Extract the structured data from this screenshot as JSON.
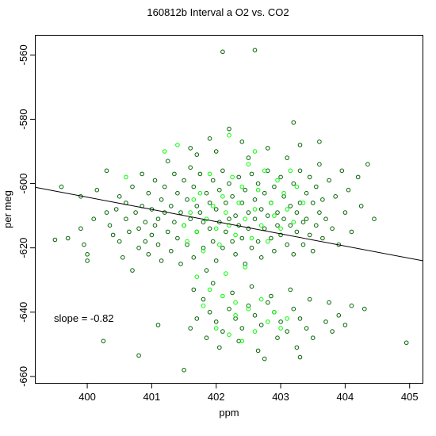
{
  "chart_data": {
    "type": "scatter",
    "title": "160812b   Interval a O2 vs. CO2",
    "xlabel": "ppm",
    "ylabel": "per meg",
    "xlim": [
      399.2,
      405.2
    ],
    "ylim": [
      -662,
      -554
    ],
    "xticks": [
      400,
      401,
      402,
      403,
      404,
      405
    ],
    "yticks": [
      -560,
      -580,
      -600,
      -620,
      -640,
      -660
    ],
    "grid": false,
    "legend": "none",
    "annotation": "slope =  -0.82",
    "regression": {
      "slope": -0.82,
      "x": [
        399.2,
        405.2
      ],
      "y": [
        -601.2,
        -624.0
      ]
    },
    "colors": {
      "series_a": "#006400",
      "series_b": "#00ff00",
      "line": "#000000"
    },
    "series": [
      {
        "color": "#006400",
        "points": [
          [
            399.5,
            -617.5
          ],
          [
            399.6,
            -601
          ],
          [
            399.7,
            -617
          ],
          [
            399.9,
            -604
          ],
          [
            399.9,
            -614
          ],
          [
            399.95,
            -619
          ],
          [
            400.0,
            -622
          ],
          [
            400.0,
            -624
          ],
          [
            400.1,
            -611
          ],
          [
            400.15,
            -602
          ],
          [
            400.25,
            -649
          ],
          [
            400.3,
            -596
          ],
          [
            400.3,
            -609
          ],
          [
            400.35,
            -613
          ],
          [
            400.4,
            -616
          ],
          [
            400.45,
            -608
          ],
          [
            400.5,
            -604
          ],
          [
            400.5,
            -618
          ],
          [
            400.55,
            -623
          ],
          [
            400.6,
            -611
          ],
          [
            400.6,
            -606
          ],
          [
            400.65,
            -615
          ],
          [
            400.7,
            -601
          ],
          [
            400.7,
            -627
          ],
          [
            400.75,
            -609
          ],
          [
            400.8,
            -620
          ],
          [
            400.8,
            -614
          ],
          [
            400.85,
            -597
          ],
          [
            400.85,
            -607
          ],
          [
            400.9,
            -612
          ],
          [
            400.9,
            -618
          ],
          [
            400.95,
            -622
          ],
          [
            400.95,
            -603
          ],
          [
            401.0,
            -608
          ],
          [
            401.0,
            -616
          ],
          [
            401.05,
            -599
          ],
          [
            401.05,
            -613
          ],
          [
            401.1,
            -611
          ],
          [
            401.1,
            -619
          ],
          [
            401.15,
            -605
          ],
          [
            401.15,
            -624
          ],
          [
            401.2,
            -601
          ],
          [
            401.2,
            -609
          ],
          [
            401.25,
            -615
          ],
          [
            401.25,
            -593
          ],
          [
            401.3,
            -607
          ],
          [
            401.3,
            -621
          ],
          [
            401.35,
            -612
          ],
          [
            401.35,
            -597
          ],
          [
            401.4,
            -603
          ],
          [
            401.4,
            -617
          ],
          [
            401.45,
            -609
          ],
          [
            401.45,
            -625
          ],
          [
            401.5,
            -599
          ],
          [
            401.5,
            -613
          ],
          [
            401.55,
            -605
          ],
          [
            401.55,
            -619
          ],
          [
            401.6,
            -595
          ],
          [
            401.6,
            -611
          ],
          [
            401.65,
            -601
          ],
          [
            401.65,
            -623
          ],
          [
            401.7,
            -607
          ],
          [
            401.7,
            -615
          ],
          [
            401.75,
            -597
          ],
          [
            401.75,
            -609
          ],
          [
            401.8,
            -612
          ],
          [
            401.8,
            -620
          ],
          [
            401.85,
            -603
          ],
          [
            401.85,
            -627
          ],
          [
            401.9,
            -606
          ],
          [
            401.9,
            -614
          ],
          [
            401.95,
            -599
          ],
          [
            401.95,
            -618
          ],
          [
            402.0,
            -608
          ],
          [
            402.0,
            -624
          ],
          [
            402.05,
            -602
          ],
          [
            402.05,
            -612
          ],
          [
            402.1,
            -596
          ],
          [
            402.1,
            -620
          ],
          [
            402.15,
            -606
          ],
          [
            402.15,
            -615
          ],
          [
            402.2,
            -600
          ],
          [
            402.2,
            -611
          ],
          [
            402.25,
            -618
          ],
          [
            402.25,
            -604
          ],
          [
            402.3,
            -610
          ],
          [
            402.3,
            -622
          ],
          [
            402.35,
            -598
          ],
          [
            402.35,
            -613
          ],
          [
            402.4,
            -606
          ],
          [
            402.4,
            -617
          ],
          [
            402.45,
            -602
          ],
          [
            402.45,
            -625
          ],
          [
            402.5,
            -609
          ],
          [
            402.5,
            -614
          ],
          [
            402.55,
            -597
          ],
          [
            402.55,
            -620
          ],
          [
            402.6,
            -605
          ],
          [
            402.6,
            -611
          ],
          [
            402.65,
            -600
          ],
          [
            402.65,
            -618
          ],
          [
            402.7,
            -608
          ],
          [
            402.7,
            -623
          ],
          [
            402.75,
            -603
          ],
          [
            402.75,
            -614
          ],
          [
            402.8,
            -596
          ],
          [
            402.8,
            -610
          ],
          [
            402.85,
            -617
          ],
          [
            402.85,
            -606
          ],
          [
            402.9,
            -601
          ],
          [
            402.9,
            -621
          ],
          [
            402.95,
            -609
          ],
          [
            402.95,
            -613
          ],
          [
            403.0,
            -598
          ],
          [
            403.0,
            -616
          ],
          [
            403.05,
            -604
          ],
          [
            403.05,
            -611
          ],
          [
            403.1,
            -592
          ],
          [
            403.1,
            -619
          ],
          [
            403.15,
            -607
          ],
          [
            403.15,
            -613
          ],
          [
            403.2,
            -600
          ],
          [
            403.2,
            -622
          ],
          [
            403.25,
            -609
          ],
          [
            403.25,
            -615
          ],
          [
            403.3,
            -596
          ],
          [
            403.3,
            -606
          ],
          [
            403.35,
            -612
          ],
          [
            403.35,
            -619
          ],
          [
            403.4,
            -603
          ],
          [
            403.4,
            -611
          ],
          [
            403.45,
            -598
          ],
          [
            403.45,
            -616
          ],
          [
            403.5,
            -606
          ],
          [
            403.5,
            -621
          ],
          [
            403.55,
            -601
          ],
          [
            403.55,
            -613
          ],
          [
            403.6,
            -609
          ],
          [
            403.6,
            -594
          ],
          [
            403.65,
            -617
          ],
          [
            403.65,
            -605
          ],
          [
            403.7,
            -611
          ],
          [
            403.75,
            -599
          ],
          [
            403.8,
            -614
          ],
          [
            403.85,
            -604
          ],
          [
            403.9,
            -619
          ],
          [
            403.95,
            -596
          ],
          [
            404.0,
            -609
          ],
          [
            404.05,
            -602
          ],
          [
            404.1,
            -615
          ],
          [
            404.2,
            -598
          ],
          [
            404.25,
            -607
          ],
          [
            404.35,
            -594
          ],
          [
            404.45,
            -611
          ],
          [
            404.95,
            -649.5
          ],
          [
            400.8,
            -653.5
          ],
          [
            401.1,
            -644
          ],
          [
            401.5,
            -658
          ],
          [
            402.1,
            -559
          ],
          [
            402.6,
            -558.5
          ],
          [
            403.2,
            -581
          ],
          [
            402.2,
            -583
          ],
          [
            401.6,
            -589
          ],
          [
            401.9,
            -586
          ],
          [
            402.4,
            -587
          ],
          [
            402.8,
            -589
          ],
          [
            403.3,
            -588
          ],
          [
            403.6,
            -587
          ],
          [
            402.0,
            -590
          ],
          [
            402.5,
            -592
          ],
          [
            401.7,
            -591
          ],
          [
            401.8,
            -636
          ],
          [
            401.9,
            -640
          ],
          [
            402.0,
            -643
          ],
          [
            402.1,
            -646
          ],
          [
            402.2,
            -639
          ],
          [
            402.3,
            -642
          ],
          [
            402.4,
            -645
          ],
          [
            402.5,
            -638
          ],
          [
            402.6,
            -641
          ],
          [
            402.7,
            -644
          ],
          [
            402.8,
            -637
          ],
          [
            402.9,
            -640
          ],
          [
            403.0,
            -643
          ],
          [
            403.1,
            -646
          ],
          [
            403.2,
            -639
          ],
          [
            403.3,
            -642
          ],
          [
            403.4,
            -645
          ],
          [
            401.7,
            -642
          ],
          [
            401.6,
            -645
          ],
          [
            401.85,
            -648
          ],
          [
            402.05,
            -651
          ],
          [
            402.35,
            -649
          ],
          [
            402.65,
            -652
          ],
          [
            402.95,
            -648
          ],
          [
            403.25,
            -651
          ],
          [
            403.5,
            -648
          ],
          [
            403.7,
            -643
          ],
          [
            403.9,
            -641
          ],
          [
            404.1,
            -638
          ],
          [
            404.3,
            -639
          ],
          [
            403.8,
            -646
          ],
          [
            404.0,
            -644
          ],
          [
            402.75,
            -654.5
          ],
          [
            403.3,
            -654
          ],
          [
            401.65,
            -633
          ],
          [
            401.95,
            -631
          ],
          [
            402.25,
            -634
          ],
          [
            402.55,
            -632
          ],
          [
            402.85,
            -635
          ],
          [
            403.15,
            -633
          ],
          [
            403.45,
            -636
          ],
          [
            403.75,
            -637
          ]
        ]
      },
      {
        "color": "#00ff00",
        "points": [
          [
            400.6,
            -598
          ],
          [
            401.2,
            -590
          ],
          [
            401.4,
            -588
          ],
          [
            401.6,
            -609
          ],
          [
            401.7,
            -615
          ],
          [
            401.75,
            -603
          ],
          [
            401.8,
            -621
          ],
          [
            401.85,
            -611
          ],
          [
            401.9,
            -597
          ],
          [
            401.95,
            -607
          ],
          [
            402.0,
            -614
          ],
          [
            402.05,
            -619
          ],
          [
            402.1,
            -604
          ],
          [
            402.15,
            -609
          ],
          [
            402.2,
            -613
          ],
          [
            402.25,
            -598
          ],
          [
            402.3,
            -616
          ],
          [
            402.35,
            -606
          ],
          [
            402.4,
            -601
          ],
          [
            402.45,
            -611
          ],
          [
            402.5,
            -594
          ],
          [
            402.55,
            -617
          ],
          [
            402.6,
            -608
          ],
          [
            402.65,
            -602
          ],
          [
            402.7,
            -613
          ],
          [
            402.75,
            -596
          ],
          [
            402.8,
            -618
          ],
          [
            402.85,
            -606
          ],
          [
            402.9,
            -610
          ],
          [
            402.95,
            -599
          ],
          [
            403.0,
            -614
          ],
          [
            403.05,
            -603
          ],
          [
            403.1,
            -608
          ],
          [
            403.15,
            -596
          ],
          [
            403.2,
            -612
          ],
          [
            403.25,
            -601
          ],
          [
            403.35,
            -606
          ],
          [
            401.5,
            -613
          ],
          [
            401.55,
            -618
          ],
          [
            401.65,
            -605
          ],
          [
            402.2,
            -585
          ],
          [
            402.6,
            -590
          ],
          [
            401.9,
            -633
          ],
          [
            402.1,
            -635
          ],
          [
            402.3,
            -637
          ],
          [
            402.5,
            -639
          ],
          [
            402.7,
            -636
          ],
          [
            402.9,
            -640
          ],
          [
            403.1,
            -642
          ],
          [
            402.0,
            -645
          ],
          [
            402.2,
            -647
          ],
          [
            402.4,
            -649
          ],
          [
            402.6,
            -646
          ],
          [
            402.8,
            -643
          ],
          [
            401.8,
            -638
          ],
          [
            403.0,
            -645
          ],
          [
            402.3,
            -641
          ],
          [
            402.15,
            -628
          ],
          [
            402.45,
            -626
          ],
          [
            401.7,
            -629
          ]
        ]
      }
    ]
  }
}
